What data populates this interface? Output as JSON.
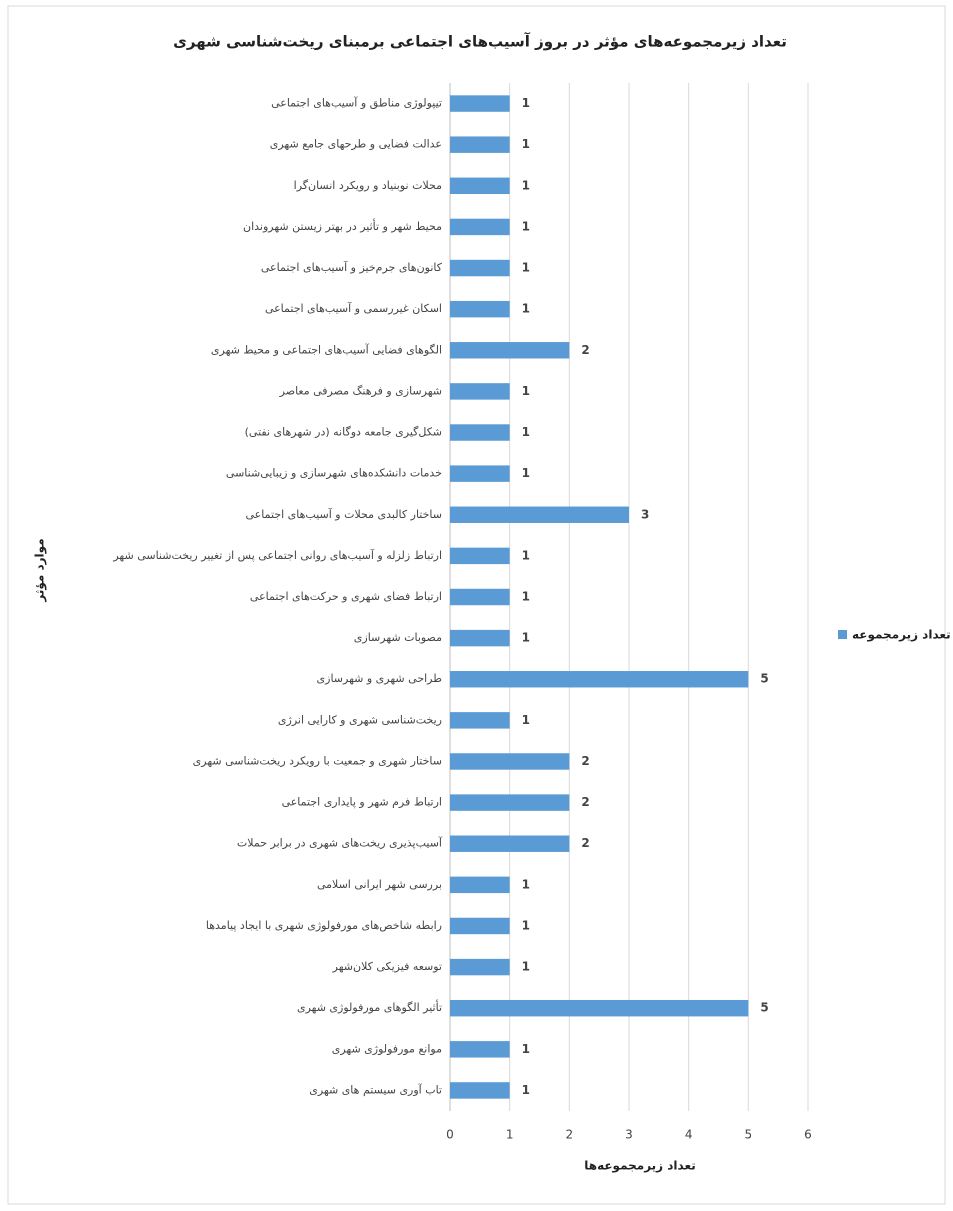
{
  "chart_data": {
    "type": "barh",
    "title": "تعداد زیرمجموعه‌های مؤثر در بروز آسیب‌های اجتماعی برمبنای ریخت‌شناسی شهری",
    "x_label": "تعداد زیرمجموعه‌ها",
    "y_label": "موارد مؤثر",
    "categories": [
      "تیپولوژی مناطق و آسیب‌های اجتماعی",
      "عدالت فضایی و طرحهای جامع شهری",
      "محلات نوبنیاد و رویکرد انسان‌گرا",
      "محیط شهر و تأثیر در بهتر زیستن شهروندان",
      "کانون‌های جرم‌خیز و آسیب‌های اجتماعی",
      "اسکان غیررسمی و آسیب‌های اجتماعی",
      "الگوهای فضایی آسیب‌های اجتماعی و محیط شهری",
      "شهرسازی و فرهنگ مصرفی معاصر",
      "شکل‌گیری جامعه دوگانه (در شهرهای نفتی)",
      "خدمات دانشکده‌های شهرسازی و زیبایی‌شناسی",
      "ساختار کالبدی محلات و آسیب‌های اجتماعی",
      "ارتباط زلزله و آسیب‌های روانی اجتماعی پس از تغییر ریخت‌شناسی شهر",
      "ارتباط فضای شهری و حرکت‌های اجتماعی",
      "مصوبات شهرسازی",
      "طراحی شهری و شهرسازی",
      "ریخت‌شناسی شهری و کارایی انرژی",
      "ساختار شهری و جمعیت با رویکرد ریخت‌شناسی شهری",
      "ارتباط فرم شهر و پایداری اجتماعی",
      "آسیب‌پذیری ریخت‌های شهری در برابر حملات",
      "بررسی شهر ایرانی اسلامی",
      "رابطه شاخص‌های مورفولوژی شهری با ایجاد پیامدها",
      "توسعه فیزیکی کلان‌شهر",
      "تأثیر الگوهای مورفولوژی شهری",
      "موانع مورفولوژی شهری",
      "تاب آوری سیستم های شهری"
    ],
    "series": [
      {
        "name": "تعداد زیرمجموعه",
        "color": "#5b9bd5",
        "values": [
          1,
          1,
          1,
          1,
          1,
          1,
          2,
          1,
          1,
          1,
          3,
          1,
          1,
          1,
          5,
          1,
          2,
          2,
          2,
          1,
          1,
          1,
          5,
          1,
          1
        ]
      }
    ],
    "xlim": [
      0,
      6
    ],
    "xticks": [
      0,
      1,
      2,
      3,
      4,
      5,
      6
    ],
    "grid": true,
    "legend": "right"
  }
}
